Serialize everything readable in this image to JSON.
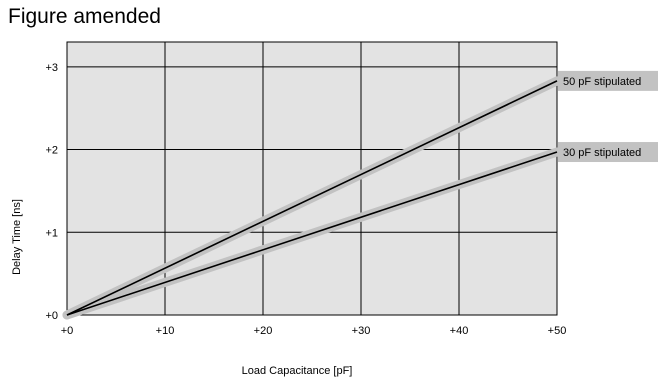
{
  "page": {
    "title": "Figure amended"
  },
  "chart_data": {
    "type": "line",
    "title": "Figure amended",
    "xlabel": "Load Capacitance [pF]",
    "ylabel": "Delay Time [ns]",
    "xlim": [
      0,
      50
    ],
    "ylim": [
      0,
      3.3
    ],
    "x_ticks": [
      0,
      10,
      20,
      30,
      40,
      50
    ],
    "x_tick_labels": [
      "+0",
      "+10",
      "+20",
      "+30",
      "+40",
      "+50"
    ],
    "y_ticks": [
      0,
      1,
      2,
      3
    ],
    "y_tick_labels": [
      "+0",
      "+1",
      "+2",
      "+3"
    ],
    "grid": true,
    "series": [
      {
        "name": "50 pF stipulated",
        "x": [
          0,
          50
        ],
        "y": [
          0,
          2.83
        ]
      },
      {
        "name": "30 pF stipulated",
        "x": [
          0,
          50
        ],
        "y": [
          0,
          1.97
        ]
      }
    ],
    "colors": {
      "plot_bg": "#e3e3e3",
      "line": "#000000",
      "halo": "#c2c2c2",
      "label_bg": "#c2c2c2",
      "grid": "#000000"
    }
  }
}
